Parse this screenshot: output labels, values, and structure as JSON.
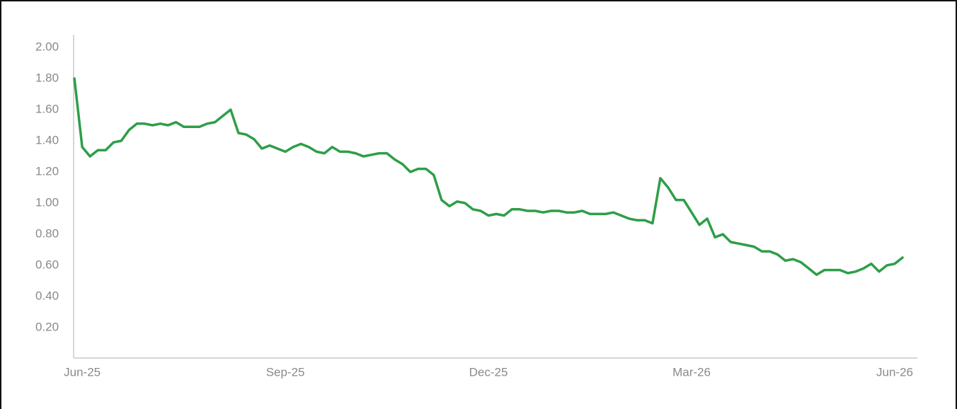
{
  "chart_data": {
    "type": "line",
    "color": "#2e9e47",
    "values": [
      1.8,
      1.36,
      1.3,
      1.34,
      1.34,
      1.39,
      1.4,
      1.47,
      1.51,
      1.51,
      1.5,
      1.51,
      1.5,
      1.52,
      1.49,
      1.49,
      1.49,
      1.51,
      1.52,
      1.56,
      1.6,
      1.45,
      1.44,
      1.41,
      1.35,
      1.37,
      1.35,
      1.33,
      1.36,
      1.38,
      1.36,
      1.33,
      1.32,
      1.36,
      1.33,
      1.33,
      1.32,
      1.3,
      1.31,
      1.32,
      1.32,
      1.28,
      1.25,
      1.2,
      1.22,
      1.22,
      1.18,
      1.02,
      0.98,
      1.01,
      1.0,
      0.96,
      0.95,
      0.92,
      0.93,
      0.92,
      0.96,
      0.96,
      0.95,
      0.95,
      0.94,
      0.95,
      0.95,
      0.94,
      0.94,
      0.95,
      0.93,
      0.93,
      0.93,
      0.94,
      0.92,
      0.9,
      0.89,
      0.89,
      0.87,
      1.16,
      1.1,
      1.02,
      1.02,
      0.94,
      0.86,
      0.9,
      0.78,
      0.8,
      0.75,
      0.74,
      0.73,
      0.72,
      0.69,
      0.69,
      0.67,
      0.63,
      0.64,
      0.62,
      0.58,
      0.54,
      0.57,
      0.57,
      0.57,
      0.55,
      0.56,
      0.58,
      0.61,
      0.56,
      0.6,
      0.61,
      0.65
    ],
    "xlim": [
      -0.1,
      107.9
    ],
    "xticks": [
      {
        "value": 1,
        "label": "Jun-25"
      },
      {
        "value": 27,
        "label": "Sep-25"
      },
      {
        "value": 53,
        "label": "Dec-25"
      },
      {
        "value": 79,
        "label": "Mar-26"
      },
      {
        "value": 105,
        "label": "Jun-26"
      }
    ],
    "ylim": [
      0,
      2.08
    ],
    "yticks": [
      {
        "value": 0.2,
        "label": "0.20"
      },
      {
        "value": 0.4,
        "label": "0.40"
      },
      {
        "value": 0.6,
        "label": "0.60"
      },
      {
        "value": 0.8,
        "label": "0.80"
      },
      {
        "value": 1,
        "label": "1.00"
      },
      {
        "value": 1.2,
        "label": "1.20"
      },
      {
        "value": 1.4,
        "label": "1.40"
      },
      {
        "value": 1.6,
        "label": "1.60"
      },
      {
        "value": 1.8,
        "label": "1.80"
      },
      {
        "value": 2,
        "label": "2.00"
      }
    ],
    "grid": false
  }
}
